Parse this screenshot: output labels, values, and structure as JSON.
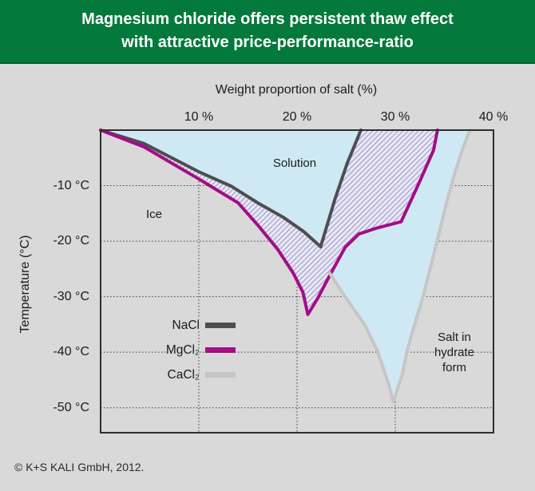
{
  "header": {
    "line1": "Magnesium chloride offers persistent thaw effect",
    "line2": "with attractive price-performance-ratio",
    "bg_color": "#04793c"
  },
  "footer": {
    "copyright": "© K+S KALI GmbH, 2012."
  },
  "colors": {
    "page_background": "#d9d9d9",
    "header_green": "#04793c",
    "nacl": "#4c4e50",
    "mgcl2": "#a30d86",
    "cacl2": "#c6c6c6",
    "solution_blue": "#cfe9f4",
    "hatch_background": "#dcecf7",
    "hatch_stripe": "#b2378f",
    "grid": "#3a3a3a"
  },
  "chart_data": {
    "type": "line",
    "title": "",
    "xlabel": "Weight proportion of salt (%)",
    "ylabel": "Temperature (°C)",
    "xlim": [
      0,
      40
    ],
    "ylim": [
      -54.5,
      0
    ],
    "grid": "dotted",
    "legend_position": "inside-lower-left",
    "x_ticks": [
      {
        "value": 10,
        "label": "10 %"
      },
      {
        "value": 20,
        "label": "20 %"
      },
      {
        "value": 30,
        "label": "30 %"
      },
      {
        "value": 40,
        "label": "40 %"
      }
    ],
    "y_ticks": [
      {
        "value": -10,
        "label": "-10 °C"
      },
      {
        "value": -20,
        "label": "-20 °C"
      },
      {
        "value": -30,
        "label": "-30 °C"
      },
      {
        "value": -40,
        "label": "-40 °C"
      },
      {
        "value": -50,
        "label": "-50 °C"
      }
    ],
    "series": [
      {
        "name": "nacl",
        "label": "NaCl",
        "color": "#4c4e50",
        "eutectic": {
          "pct": 22.4,
          "temp_c": -21
        },
        "points": [
          [
            0,
            0
          ],
          [
            4.4,
            -2.4
          ],
          [
            10,
            -7.5
          ],
          [
            13.3,
            -10.1
          ],
          [
            16,
            -13.1
          ],
          [
            18.6,
            -15.7
          ],
          [
            20.7,
            -18.3
          ],
          [
            22.4,
            -21
          ],
          [
            23.9,
            -12.2
          ],
          [
            25.1,
            -6
          ],
          [
            26.5,
            0
          ]
        ]
      },
      {
        "name": "mgcl2",
        "label": "MgCl₂",
        "color": "#a30d86",
        "eutectic": {
          "pct": 21.1,
          "temp_c": -33.2
        },
        "points": [
          [
            0,
            0
          ],
          [
            4.4,
            -3
          ],
          [
            10,
            -8.8
          ],
          [
            14,
            -13.1
          ],
          [
            16,
            -17.1
          ],
          [
            18,
            -21.4
          ],
          [
            19.6,
            -25.7
          ],
          [
            20.6,
            -29.2
          ],
          [
            21.1,
            -33.2
          ],
          [
            22.1,
            -30.3
          ],
          [
            23.2,
            -26.6
          ],
          [
            24.9,
            -21.1
          ],
          [
            26.3,
            -18.7
          ],
          [
            28,
            -17.7
          ],
          [
            30.6,
            -16.5
          ],
          [
            32.4,
            -9.6
          ],
          [
            33.9,
            -3.6
          ],
          [
            34.3,
            0
          ]
        ]
      },
      {
        "name": "cacl2",
        "label": "CaCl₂",
        "color": "#c6c6c6",
        "eutectic": {
          "pct": 29.8,
          "temp_c": -48.9
        },
        "points": [
          [
            23.3,
            -25.7
          ],
          [
            24.7,
            -29.5
          ],
          [
            26.9,
            -35.1
          ],
          [
            28.2,
            -39.8
          ],
          [
            29.3,
            -45.6
          ],
          [
            29.8,
            -48.9
          ],
          [
            30.7,
            -44.1
          ],
          [
            31.2,
            -39.8
          ],
          [
            32,
            -34.8
          ],
          [
            32.8,
            -30.2
          ],
          [
            34.1,
            -21.1
          ],
          [
            35.3,
            -12.5
          ],
          [
            36.1,
            -7.5
          ],
          [
            36.9,
            -3.2
          ],
          [
            37.6,
            0
          ]
        ]
      }
    ],
    "regions": [
      {
        "name": "solution-left",
        "fill": "#cfe9f4",
        "points": [
          [
            0,
            0
          ],
          [
            4.4,
            -2.4
          ],
          [
            10,
            -7.5
          ],
          [
            13.3,
            -10.1
          ],
          [
            16,
            -13.1
          ],
          [
            18.6,
            -15.7
          ],
          [
            20.7,
            -18.3
          ],
          [
            22.4,
            -21
          ],
          [
            23.9,
            -12.2
          ],
          [
            25.1,
            -6
          ],
          [
            26.5,
            0
          ]
        ]
      },
      {
        "name": "solution-right",
        "fill": "#cfe9f4",
        "points": [
          [
            23.3,
            -25.7
          ],
          [
            24.9,
            -21.1
          ],
          [
            26.3,
            -18.7
          ],
          [
            28,
            -17.7
          ],
          [
            30.6,
            -16.5
          ],
          [
            32.4,
            -9.6
          ],
          [
            33.9,
            -3.6
          ],
          [
            34.3,
            0
          ],
          [
            37.6,
            0
          ],
          [
            36.9,
            -3.2
          ],
          [
            36.1,
            -7.5
          ],
          [
            35.3,
            -12.5
          ],
          [
            34.1,
            -21.1
          ],
          [
            32.8,
            -30.2
          ],
          [
            32,
            -34.8
          ],
          [
            31.2,
            -39.8
          ],
          [
            30.7,
            -44.1
          ],
          [
            29.8,
            -48.9
          ],
          [
            29.3,
            -45.6
          ],
          [
            28.2,
            -39.8
          ],
          [
            26.9,
            -35.1
          ],
          [
            24.7,
            -29.5
          ]
        ]
      },
      {
        "name": "mgcl2-advantage-hatch",
        "fill": "hatch",
        "points": [
          [
            0,
            0
          ],
          [
            4.4,
            -2.4
          ],
          [
            10,
            -7.5
          ],
          [
            13.3,
            -10.1
          ],
          [
            16,
            -13.1
          ],
          [
            18.6,
            -15.7
          ],
          [
            20.7,
            -18.3
          ],
          [
            22.4,
            -21
          ],
          [
            23.9,
            -12.2
          ],
          [
            25.1,
            -6
          ],
          [
            26.5,
            0
          ],
          [
            34.3,
            0
          ],
          [
            33.9,
            -3.6
          ],
          [
            32.4,
            -9.6
          ],
          [
            30.6,
            -16.5
          ],
          [
            28,
            -17.7
          ],
          [
            26.3,
            -18.7
          ],
          [
            24.9,
            -21.1
          ],
          [
            23.2,
            -26.6
          ],
          [
            22.1,
            -30.3
          ],
          [
            21.1,
            -33.2
          ],
          [
            20.6,
            -29.2
          ],
          [
            19.6,
            -25.7
          ],
          [
            18,
            -21.4
          ],
          [
            16,
            -17.1
          ],
          [
            14,
            -13.1
          ],
          [
            10,
            -8.8
          ],
          [
            4.4,
            -3
          ],
          [
            0,
            0
          ]
        ]
      }
    ],
    "area_labels": [
      {
        "name": "solution",
        "text": "Solution"
      },
      {
        "name": "ice",
        "text": "Ice"
      },
      {
        "name": "salt-hydrate",
        "text": "Salt in hydrate form"
      }
    ]
  }
}
